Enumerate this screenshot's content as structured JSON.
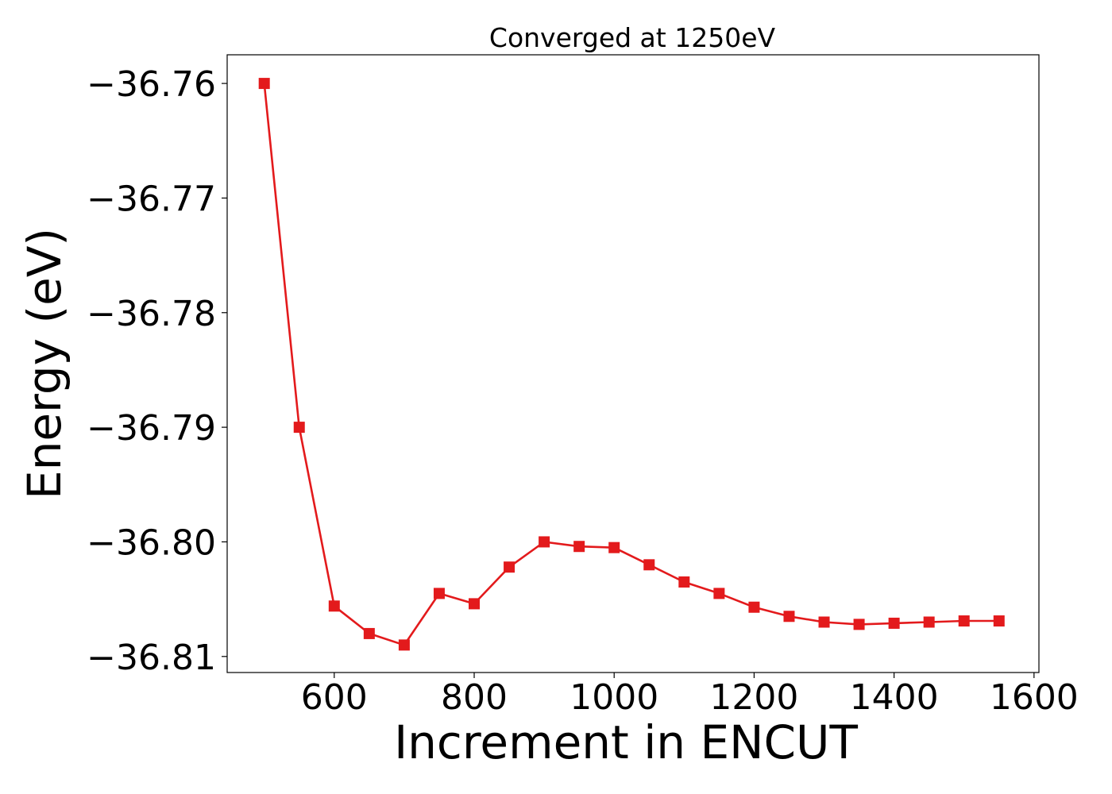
{
  "chart_data": {
    "type": "line",
    "title": "Converged at 1250eV",
    "xlabel": "Increment in ENCUT",
    "ylabel": "Energy (eV)",
    "xlim": [
      447,
      1607
    ],
    "ylim": [
      -36.8114,
      -36.7575
    ],
    "xticks": [
      600,
      800,
      1000,
      1200,
      1400,
      1600
    ],
    "xtick_labels": [
      "600",
      "800",
      "1000",
      "1200",
      "1400",
      "1600"
    ],
    "yticks": [
      -36.76,
      -36.77,
      -36.78,
      -36.79,
      -36.8,
      -36.81
    ],
    "ytick_labels": [
      "−36.76",
      "−36.77",
      "−36.78",
      "−36.79",
      "−36.80",
      "−36.81"
    ],
    "grid": false,
    "series": [
      {
        "color": "#e31a1c",
        "marker": "square",
        "x": [
          500,
          550,
          600,
          650,
          700,
          750,
          800,
          850,
          900,
          950,
          1000,
          1050,
          1100,
          1150,
          1200,
          1250,
          1300,
          1350,
          1400,
          1450,
          1500,
          1550
        ],
        "y": [
          -36.76,
          -36.79,
          -36.8056,
          -36.808,
          -36.809,
          -36.8045,
          -36.8054,
          -36.8022,
          -36.8,
          -36.8004,
          -36.8005,
          -36.802,
          -36.8035,
          -36.8045,
          -36.8057,
          -36.8065,
          -36.807,
          -36.8072,
          -36.8071,
          -36.807,
          -36.8069,
          -36.8069
        ]
      }
    ]
  }
}
